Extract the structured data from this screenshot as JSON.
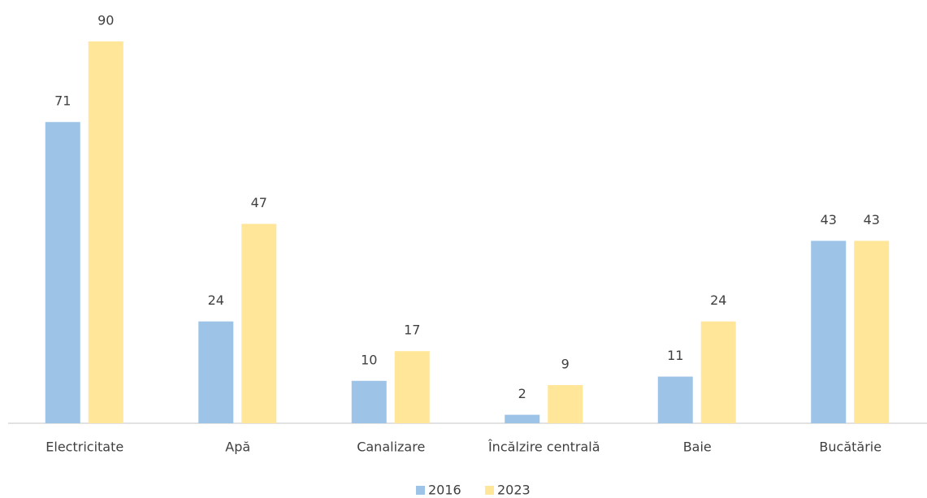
{
  "chart_data": {
    "type": "bar",
    "categories": [
      "Electricitate",
      "Apă",
      "Canalizare",
      "Încălzire centrală",
      "Baie",
      "Bucătărie"
    ],
    "series": [
      {
        "name": "2016",
        "color": "#9dc3e6",
        "values": [
          71,
          24,
          10,
          2,
          11,
          43
        ]
      },
      {
        "name": "2023",
        "color": "#ffe699",
        "values": [
          90,
          47,
          17,
          9,
          24,
          43
        ]
      }
    ],
    "legend": "bottom"
  }
}
